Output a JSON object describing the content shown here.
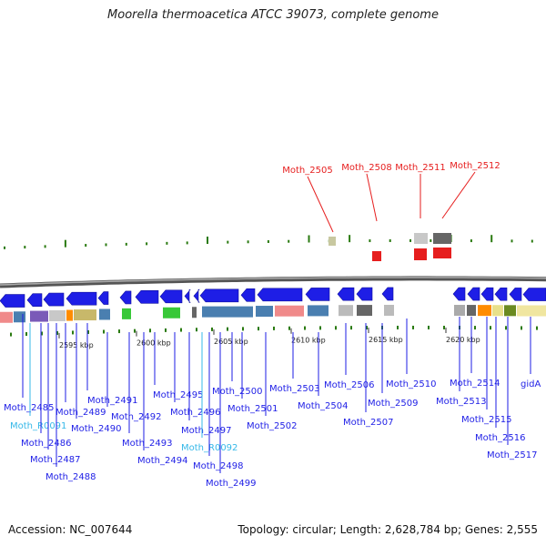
{
  "title": "Moorella thermoacetica ATCC 39073, complete genome",
  "footer": {
    "accession": "Accession: NC_007644",
    "summary": "Topology: circular; Length: 2,628,784 bp; Genes: 2,555"
  },
  "colors": {
    "gene_blue": "#1e1ee6",
    "rna_cyan": "#35b8e8",
    "red_gene": "#e61e1e",
    "tick_green": "#2a7a10",
    "backbone": "#808080"
  },
  "ticks": [
    "2595 kbp",
    "2600 kbp",
    "2605 kbp",
    "2610 kbp",
    "2615 kbp",
    "2620 kbp"
  ],
  "top_genes": [
    "Moth_2505",
    "Moth_2508",
    "Moth_2511",
    "Moth_2512"
  ],
  "bottom_genes": [
    "Moth_2485",
    "Moth_R0091",
    "Moth_2486",
    "Moth_2487",
    "Moth_2488",
    "Moth_2489",
    "Moth_2490",
    "Moth_2491",
    "Moth_2492",
    "Moth_2493",
    "Moth_2494",
    "Moth_2495",
    "Moth_2496",
    "Moth_2497",
    "Moth_R0092",
    "Moth_2498",
    "Moth_2499",
    "Moth_2500",
    "Moth_2501",
    "Moth_2502",
    "Moth_2503",
    "Moth_2504",
    "Moth_2506",
    "Moth_2507",
    "Moth_2509",
    "Moth_2510",
    "Moth_2513",
    "Moth_2514",
    "Moth_2515",
    "Moth_2516",
    "Moth_2517",
    "gidA"
  ]
}
